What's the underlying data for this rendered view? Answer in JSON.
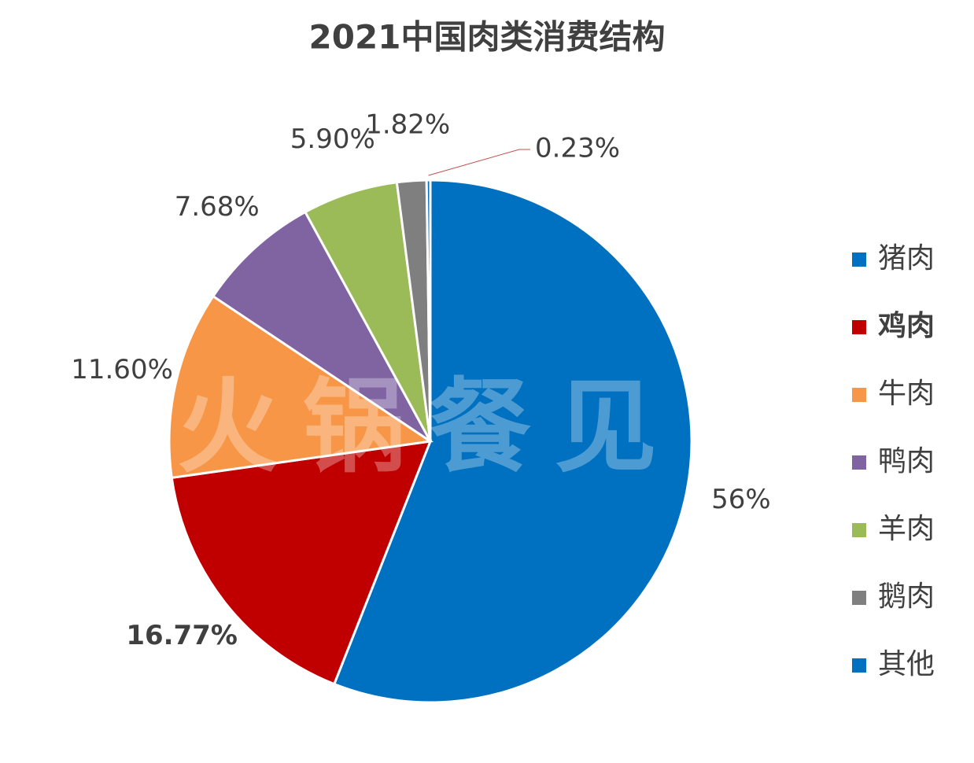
{
  "chart_data": {
    "type": "pie",
    "title": "2021中国肉类消费结构",
    "watermark": "火锅餐见",
    "categories": [
      "猪肉",
      "鸡肉",
      "牛肉",
      "鸭肉",
      "羊肉",
      "鹅肉",
      "其他"
    ],
    "values": [
      56,
      16.77,
      11.6,
      7.68,
      5.9,
      1.82,
      0.23
    ],
    "value_labels": [
      "56%",
      "16.77%",
      "11.60%",
      "7.68%",
      "5.90%",
      "1.82%",
      "0.23%"
    ],
    "colors": [
      "#0070c0",
      "#c00000",
      "#f79646",
      "#8064a2",
      "#9bbb59",
      "#7f7f7f",
      "#0070c0"
    ],
    "legend": "right"
  }
}
